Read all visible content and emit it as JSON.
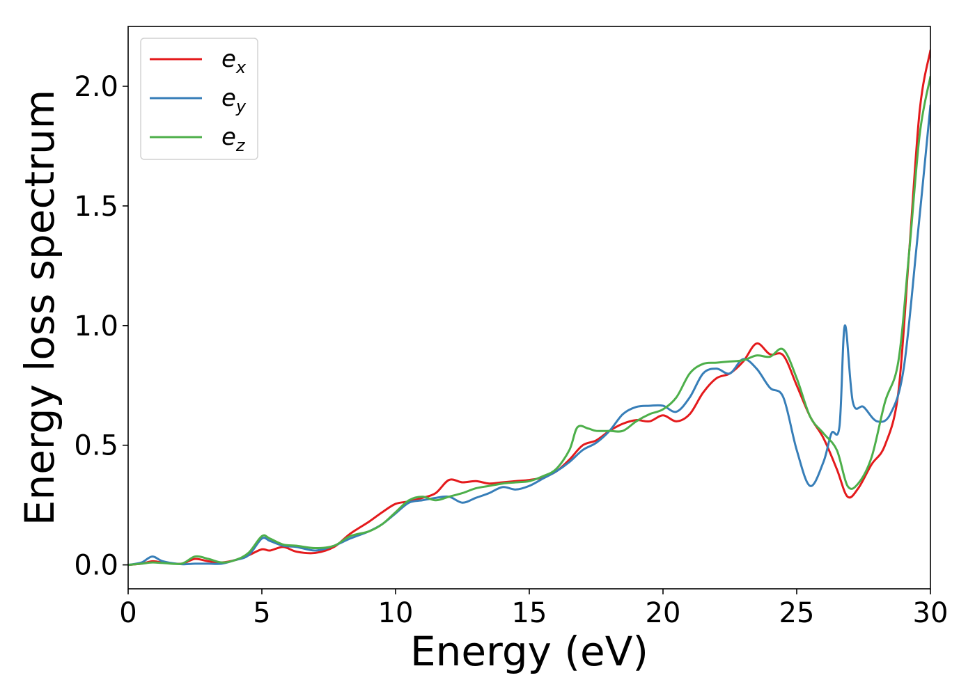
{
  "chart_data": {
    "type": "line",
    "xlabel": "Energy (eV)",
    "ylabel": "Energy loss spectrum",
    "xlim": [
      0,
      30
    ],
    "ylim": [
      -0.1,
      2.25
    ],
    "xticks": [
      0,
      5,
      10,
      15,
      20,
      25,
      30
    ],
    "xtick_labels": [
      "0",
      "5",
      "10",
      "15",
      "20",
      "25",
      "30"
    ],
    "yticks": [
      0.0,
      0.5,
      1.0,
      1.5,
      2.0
    ],
    "ytick_labels": [
      "0.0",
      "0.5",
      "1.0",
      "1.5",
      "2.0"
    ],
    "grid": false,
    "legend_position": "top-left",
    "series": [
      {
        "name": "e_x",
        "legend_main": "e",
        "legend_sub": "x",
        "color": "#e41a1c",
        "x": [
          0,
          0.5,
          0.9,
          1.3,
          2,
          2.5,
          3,
          3.5,
          4,
          4.5,
          5,
          5.3,
          5.8,
          6.3,
          7,
          7.7,
          8.3,
          9,
          9.5,
          10,
          10.5,
          11,
          11.5,
          12,
          12.5,
          13,
          13.5,
          14,
          14.5,
          15,
          15.5,
          16,
          16.5,
          17,
          17.5,
          18,
          18.5,
          19,
          19.5,
          20,
          20.5,
          21,
          21.5,
          22,
          22.5,
          23,
          23.5,
          24,
          24.5,
          25,
          25.5,
          26,
          26.5,
          26.9,
          27.3,
          27.8,
          28.3,
          28.8,
          29.2,
          29.6,
          30
        ],
        "y": [
          0.0,
          0.005,
          0.015,
          0.01,
          0.005,
          0.025,
          0.015,
          0.01,
          0.02,
          0.04,
          0.065,
          0.06,
          0.075,
          0.055,
          0.05,
          0.075,
          0.13,
          0.18,
          0.22,
          0.255,
          0.265,
          0.28,
          0.3,
          0.355,
          0.345,
          0.35,
          0.34,
          0.345,
          0.35,
          0.355,
          0.365,
          0.39,
          0.44,
          0.5,
          0.52,
          0.56,
          0.59,
          0.605,
          0.6,
          0.625,
          0.6,
          0.63,
          0.72,
          0.78,
          0.8,
          0.85,
          0.925,
          0.88,
          0.875,
          0.75,
          0.62,
          0.53,
          0.4,
          0.285,
          0.32,
          0.42,
          0.5,
          0.72,
          1.3,
          1.9,
          2.15
        ]
      },
      {
        "name": "e_y",
        "legend_main": "e",
        "legend_sub": "y",
        "color": "#377eb8",
        "x": [
          0,
          0.5,
          0.9,
          1.3,
          2,
          2.5,
          3,
          3.5,
          4,
          4.5,
          5,
          5.3,
          5.8,
          6.3,
          7,
          7.7,
          8.3,
          9,
          9.5,
          10,
          10.5,
          11,
          11.5,
          12,
          12.5,
          13,
          13.5,
          14,
          14.5,
          15,
          15.5,
          16,
          16.5,
          17,
          17.5,
          18,
          18.5,
          19,
          19.5,
          20,
          20.5,
          21,
          21.5,
          22,
          22.5,
          23,
          23.5,
          24,
          24.5,
          25,
          25.5,
          26,
          26.3,
          26.6,
          26.8,
          27.1,
          27.5,
          28,
          28.5,
          29,
          29.5,
          30
        ],
        "y": [
          0.0,
          0.01,
          0.035,
          0.015,
          0.003,
          0.005,
          0.005,
          0.005,
          0.02,
          0.04,
          0.11,
          0.1,
          0.08,
          0.075,
          0.06,
          0.08,
          0.11,
          0.14,
          0.17,
          0.215,
          0.26,
          0.27,
          0.28,
          0.285,
          0.26,
          0.28,
          0.3,
          0.325,
          0.315,
          0.33,
          0.36,
          0.39,
          0.43,
          0.48,
          0.51,
          0.56,
          0.63,
          0.66,
          0.665,
          0.665,
          0.64,
          0.7,
          0.8,
          0.82,
          0.8,
          0.86,
          0.82,
          0.74,
          0.7,
          0.48,
          0.33,
          0.43,
          0.55,
          0.58,
          1.0,
          0.68,
          0.66,
          0.6,
          0.63,
          0.82,
          1.35,
          1.92
        ]
      },
      {
        "name": "e_z",
        "legend_main": "e",
        "legend_sub": "z",
        "color": "#4daf4a",
        "x": [
          0,
          0.5,
          0.9,
          1.3,
          2,
          2.5,
          3,
          3.5,
          4,
          4.5,
          5,
          5.3,
          5.8,
          6.3,
          7,
          7.7,
          8.3,
          9,
          9.5,
          10,
          10.5,
          11,
          11.5,
          12,
          12.5,
          13,
          13.5,
          14,
          14.5,
          15,
          15.5,
          16,
          16.5,
          16.8,
          17.2,
          17.5,
          18,
          18.5,
          19,
          19.5,
          20,
          20.5,
          21,
          21.5,
          22,
          22.5,
          23,
          23.5,
          24,
          24.5,
          25,
          25.5,
          26,
          26.5,
          26.9,
          27.3,
          27.8,
          28.3,
          28.8,
          29.2,
          29.6,
          30
        ],
        "y": [
          0.0,
          0.005,
          0.01,
          0.008,
          0.005,
          0.035,
          0.025,
          0.01,
          0.02,
          0.05,
          0.12,
          0.11,
          0.085,
          0.08,
          0.07,
          0.08,
          0.12,
          0.14,
          0.17,
          0.22,
          0.27,
          0.285,
          0.27,
          0.285,
          0.3,
          0.32,
          0.33,
          0.34,
          0.345,
          0.35,
          0.37,
          0.4,
          0.48,
          0.575,
          0.57,
          0.56,
          0.56,
          0.56,
          0.6,
          0.63,
          0.65,
          0.7,
          0.8,
          0.84,
          0.845,
          0.85,
          0.855,
          0.875,
          0.87,
          0.9,
          0.78,
          0.62,
          0.55,
          0.48,
          0.33,
          0.34,
          0.45,
          0.68,
          0.85,
          1.3,
          1.8,
          2.04
        ]
      }
    ]
  }
}
